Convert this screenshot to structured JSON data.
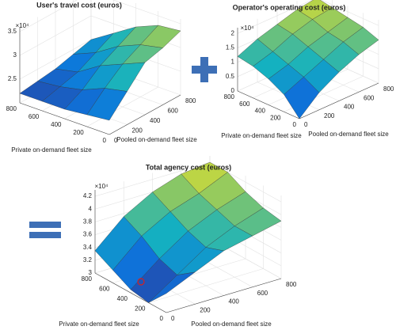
{
  "chart_data": [
    {
      "type": "surface",
      "title": "User's travel cost (euros)",
      "multiplier": "×10⁴",
      "x_label": "Pooled on-demand fleet size",
      "y_label": "Private on-demand fleet size",
      "x": [
        0,
        200,
        400,
        600,
        800
      ],
      "y": [
        0,
        200,
        400,
        600,
        800
      ],
      "z": [
        [
          2.3,
          2.7,
          3.1,
          3.2,
          3.35
        ],
        [
          2.25,
          2.6,
          2.9,
          3.1,
          3.3
        ],
        [
          2.2,
          2.4,
          2.7,
          2.9,
          3.1
        ],
        [
          2.2,
          2.3,
          2.4,
          2.6,
          2.8
        ],
        [
          2.2,
          2.25,
          2.3,
          2.4,
          2.5
        ]
      ],
      "xlim": [
        0,
        800
      ],
      "ylim": [
        0,
        800
      ],
      "zlim": [
        2,
        3.6
      ],
      "xticks": [
        0,
        200,
        400,
        600,
        800
      ],
      "yticks": [
        0,
        200,
        400,
        600,
        800
      ],
      "zticks": [
        2.5,
        3,
        3.5
      ],
      "colormap": [
        "#352a87",
        "#0d75dc",
        "#14b1c0",
        "#7fc56c",
        "#f9e51e"
      ],
      "grid": true
    },
    {
      "type": "surface",
      "title": "Operator's operating cost (euros)",
      "multiplier": "×10⁴",
      "x_label": "Pooled on-demand fleet size",
      "y_label": "Private on-demand fleet size",
      "x": [
        0,
        200,
        400,
        600,
        800
      ],
      "y": [
        0,
        200,
        400,
        600,
        800
      ],
      "z": [
        [
          0.0,
          0.6,
          1.0,
          1.3,
          1.5
        ],
        [
          0.6,
          0.9,
          1.2,
          1.5,
          1.7
        ],
        [
          0.9,
          1.1,
          1.4,
          1.6,
          1.8
        ],
        [
          1.1,
          1.3,
          1.6,
          1.8,
          1.9
        ],
        [
          1.2,
          1.5,
          1.7,
          1.9,
          2.0
        ]
      ],
      "xlim": [
        0,
        800
      ],
      "ylim": [
        0,
        800
      ],
      "zlim": [
        0,
        2.2
      ],
      "xticks": [
        0,
        200,
        400,
        600,
        800
      ],
      "yticks": [
        0,
        200,
        400,
        600,
        800
      ],
      "zticks": [
        0,
        0.5,
        1,
        1.5,
        2
      ],
      "colormap": [
        "#352a87",
        "#0d75dc",
        "#14b1c0",
        "#7fc56c",
        "#f9e51e"
      ],
      "grid": true
    },
    {
      "type": "surface",
      "title": "Total agency cost (euros)",
      "multiplier": "×10⁴",
      "x_label": "Pooled on-demand fleet size",
      "y_label": "Private on-demand fleet size",
      "x": [
        0,
        200,
        400,
        600,
        800
      ],
      "y": [
        0,
        200,
        400,
        600,
        800
      ],
      "z": [
        [
          3.3,
          3.5,
          3.7,
          3.8,
          3.9
        ],
        [
          3.0,
          3.3,
          3.6,
          3.8,
          3.95
        ],
        [
          3.05,
          3.4,
          3.7,
          3.9,
          4.05
        ],
        [
          3.2,
          3.6,
          3.85,
          4.0,
          4.2
        ],
        [
          3.35,
          3.75,
          4.0,
          4.15,
          4.2
        ]
      ],
      "xlim": [
        0,
        800
      ],
      "ylim": [
        0,
        800
      ],
      "zlim": [
        3,
        4.3
      ],
      "xticks": [
        0,
        200,
        400,
        600,
        800
      ],
      "yticks": [
        0,
        200,
        400,
        600,
        800
      ],
      "zticks": [
        3,
        3.2,
        3.4,
        3.6,
        3.8,
        4,
        4.2
      ],
      "colormap": [
        "#352a87",
        "#0d75dc",
        "#14b1c0",
        "#7fc56c",
        "#f9e51e"
      ],
      "grid": true
    }
  ]
}
